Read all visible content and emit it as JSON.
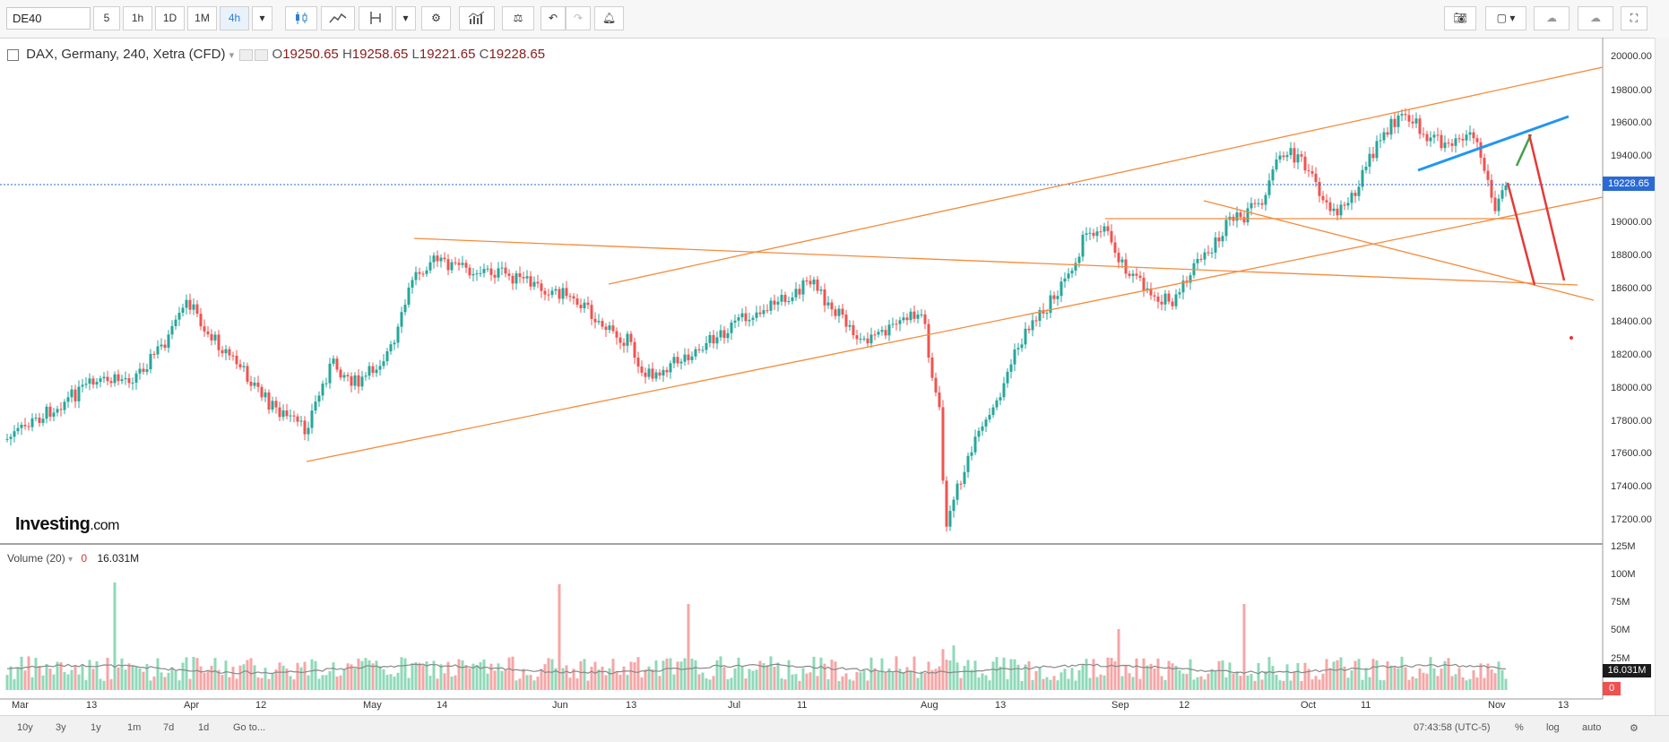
{
  "toolbar": {
    "symbol": "DE40",
    "intervals": [
      "5",
      "1h",
      "1D",
      "1M",
      "4h"
    ],
    "active_interval": "4h"
  },
  "legend": {
    "instrument": "DAX, Germany, 240, Xetra (CFD)",
    "o_label": "O",
    "o_value": "19250.65",
    "h_label": "H",
    "h_value": "19258.65",
    "l_label": "L",
    "l_value": "19221.65",
    "c_label": "C",
    "c_value": "19228.65"
  },
  "volume_legend": {
    "name": "Volume (20)",
    "zero": "0",
    "value": "16.031M"
  },
  "logo": {
    "main": "Investing",
    "suffix": ".com"
  },
  "price_axis": {
    "labels": [
      "20000.00",
      "19800.00",
      "19600.00",
      "19400.00",
      "19000.00",
      "18800.00",
      "18600.00",
      "18400.00",
      "18200.00",
      "18000.00",
      "17800.00",
      "17600.00",
      "17400.00",
      "17200.00"
    ],
    "current_price": "19228.65"
  },
  "volume_axis": {
    "labels": [
      "125M",
      "100M",
      "75M",
      "50M",
      "25M"
    ],
    "current": "16.031M",
    "zero": "0"
  },
  "time_axis": {
    "labels": [
      "Mar",
      "13",
      "Apr",
      "12",
      "May",
      "14",
      "Jun",
      "13",
      "Jul",
      "11",
      "Aug",
      "13",
      "Sep",
      "12",
      "Oct",
      "11",
      "Nov",
      "13"
    ]
  },
  "bottom_bar": {
    "ranges": [
      "10y",
      "3y",
      "1y",
      "1m",
      "7d",
      "1d"
    ],
    "goto": "Go to...",
    "time": "07:43:58 (UTC-5)",
    "percent": "%",
    "log": "log",
    "auto": "auto"
  },
  "colors": {
    "up": "#26a69a",
    "down": "#ef5350",
    "trendline": "#f58b3c",
    "wedge": "#2196f3",
    "projection_down": "#e53935",
    "projection_up": "#43a047",
    "price_line": "#2a6ad4"
  }
}
